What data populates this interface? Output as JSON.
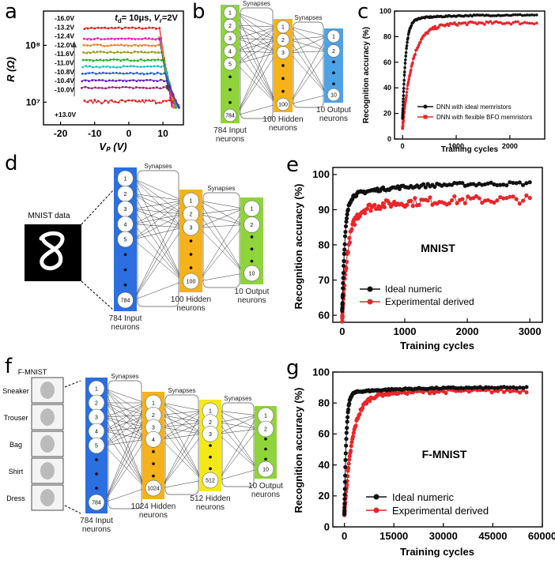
{
  "panel_labels": [
    "a",
    "b",
    "c",
    "d",
    "e",
    "f",
    "g"
  ],
  "panel_a": {
    "annotation_td": "tₑ= 10μs, Vᵣ=2V",
    "annotation_parts": {
      "td_label": "t",
      "td_sub": "d",
      "td_val": "= 10μs, ",
      "vr_label": "V",
      "vr_sub": "r",
      "vr_val": "=2V"
    },
    "voltage_labels": [
      "-16.0V",
      "-13.2V",
      "-12.4V",
      "-12.0V",
      "-11.6V",
      "-11.0V",
      "-10.8V",
      "-10.4V",
      "-10.0V",
      "+13.0V"
    ],
    "colors": [
      "#e02020",
      "#e020c0",
      "#f08030",
      "#9a9a20",
      "#20b020",
      "#20c0c0",
      "#2060e0",
      "#6020c0",
      "#a02080",
      "#e02020"
    ]
  },
  "panel_b": {
    "syn_label": "Synapses",
    "input_nodes": [
      "1",
      "2",
      "3",
      "4",
      "5",
      "784"
    ],
    "hidden_nodes": [
      "1",
      "2",
      "3",
      "100"
    ],
    "output_nodes": [
      "1",
      "2",
      "10"
    ],
    "input_caption": [
      "784 Input",
      "neurons"
    ],
    "hidden_caption": [
      "100 Hidden",
      "neurons"
    ],
    "output_caption": [
      "10 Output",
      "neurons"
    ]
  },
  "panel_d": {
    "mnist_label": "MNIST data",
    "syn_label": "Synapses",
    "input_nodes": [
      "1",
      "2",
      "3",
      "4",
      "5",
      "784"
    ],
    "hidden_nodes": [
      "1",
      "2",
      "3",
      "100"
    ],
    "output_nodes": [
      "1",
      "2",
      "10"
    ],
    "input_caption": [
      "784 Input",
      "neurons"
    ],
    "hidden_caption": [
      "100 Hidden",
      "neurons"
    ],
    "output_caption": [
      "10 Output",
      "neurons"
    ]
  },
  "panel_f": {
    "title": "F-MNIST",
    "items": [
      "Sneaker",
      "Trouser",
      "Bag",
      "Shirt",
      "Dress"
    ],
    "syn_label": "Synapses",
    "l1_nodes": [
      "1",
      "2",
      "3",
      "4",
      "5",
      "784"
    ],
    "l2_nodes": [
      "1",
      "2",
      "3",
      "4",
      "1024"
    ],
    "l3_nodes": [
      "1",
      "2",
      "3",
      "512"
    ],
    "l4_nodes": [
      "1",
      "2",
      "10"
    ],
    "l1_caption": [
      "784 Input",
      "neurons"
    ],
    "l2_caption": [
      "1024 Hidden",
      "neurons"
    ],
    "l3_caption": [
      "512 Hidden",
      "neurons"
    ],
    "l4_caption": [
      "10 Output",
      "neurons"
    ]
  },
  "colors": {
    "black": "#111111",
    "red": "#e8262a",
    "green": "#8ed43a",
    "orange": "#f5b21a",
    "blue": "#4da3e6",
    "yellow": "#f2e81a",
    "deepblue": "#2b6fe0"
  },
  "chart_data": [
    {
      "id": "a",
      "type": "line",
      "ylabel": "R (Ω)",
      "xlabel": "Vₚ (V)",
      "xlim": [
        -25,
        16
      ],
      "xticks": [
        -20,
        -10,
        0,
        10
      ],
      "yscale": "log",
      "ylim": [
        4000000,
        400000000
      ],
      "yticks": [
        {
          "v": 10000000,
          "label": "10⁷"
        },
        {
          "v": 100000000,
          "label": "10⁸"
        }
      ],
      "series_levels": [
        200000000,
        130000000,
        100000000,
        75000000,
        55000000,
        42000000,
        32000000,
        24000000,
        18000000,
        10000000
      ]
    },
    {
      "id": "c",
      "type": "line",
      "xlabel": "Training cycles",
      "ylabel": "Recognition accuracy (%)",
      "xlim": [
        -150,
        2650
      ],
      "ylim": [
        0,
        100
      ],
      "xticks": [
        0,
        1000,
        2000
      ],
      "yticks": [
        0,
        20,
        40,
        60,
        80,
        100
      ],
      "legend_position": "bottom-right",
      "series": [
        {
          "name": "DNN with ideal memristors",
          "color": "#111111",
          "final": 97,
          "start": 20,
          "rise": 60
        },
        {
          "name": "DNN with flexible BFO memristors",
          "color": "#e8262a",
          "final": 91,
          "start": 12,
          "rise": 180
        }
      ]
    },
    {
      "id": "e",
      "type": "line",
      "title": "MNIST",
      "xlabel": "Training cycles",
      "ylabel": "Recognition accuracy (%)",
      "xlim": [
        -150,
        3200
      ],
      "ylim": [
        58,
        102
      ],
      "xticks": [
        0,
        1000,
        2000,
        3000
      ],
      "yticks": [
        60,
        70,
        80,
        90,
        100
      ],
      "legend_position": "lower-middle",
      "series": [
        {
          "name": "Ideal numeric",
          "color": "#111111",
          "final": 97.5,
          "start": 65,
          "rise": 45
        },
        {
          "name": "Experimental derived",
          "color": "#e8262a",
          "final": 93,
          "start": 62,
          "rise": 90
        }
      ]
    },
    {
      "id": "g",
      "type": "line",
      "title": "F-MNIST",
      "xlabel": "Training cycles",
      "ylabel": "Recognition accuracy (%)",
      "xlim": [
        -3500,
        60000
      ],
      "ylim": [
        0,
        100
      ],
      "xticks": [
        0,
        15000,
        30000,
        45000,
        60000
      ],
      "yticks": [
        0,
        20,
        40,
        60,
        80,
        100
      ],
      "legend_position": "bottom-center",
      "series": [
        {
          "name": "Ideal numeric",
          "color": "#111111",
          "final": 90,
          "start": 12,
          "rise": 600
        },
        {
          "name": "Experimental derived",
          "color": "#e8262a",
          "final": 88,
          "start": 12,
          "rise": 2500
        }
      ]
    }
  ]
}
